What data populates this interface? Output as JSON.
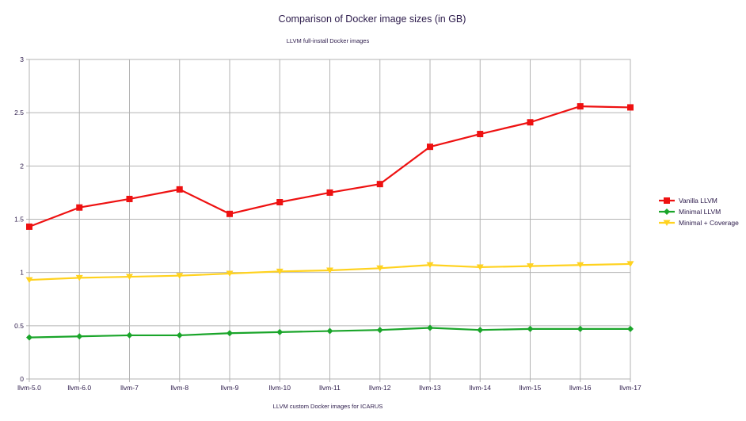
{
  "chart_data": {
    "type": "line",
    "title": "Comparison of Docker image sizes (in GB)",
    "subtitle": "LLVM full-install Docker images",
    "xlabel": "LLVM custom Docker images for ICARUS",
    "ylabel": "",
    "categories": [
      "llvm-5.0",
      "llvm-6.0",
      "llvm-7",
      "llvm-8",
      "llvm-9",
      "llvm-10",
      "llvm-11",
      "llvm-12",
      "llvm-13",
      "llvm-14",
      "llvm-15",
      "llvm-16",
      "llvm-17"
    ],
    "ylim": [
      0,
      3
    ],
    "yticks": [
      "0",
      "0.5",
      "1",
      "1.5",
      "2",
      "2.5",
      "3"
    ],
    "grid": true,
    "legend_position": "right",
    "series": [
      {
        "name": "Vanilla LLVM",
        "color": "#ee1111",
        "marker": "square",
        "values": [
          1.43,
          1.61,
          1.69,
          1.78,
          1.55,
          1.66,
          1.75,
          1.83,
          2.18,
          2.3,
          2.41,
          2.56,
          2.55
        ]
      },
      {
        "name": "Minimal LLVM",
        "color": "#1aa52a",
        "marker": "diamond",
        "values": [
          0.39,
          0.4,
          0.41,
          0.41,
          0.43,
          0.44,
          0.45,
          0.46,
          0.48,
          0.46,
          0.47,
          0.47,
          0.47
        ]
      },
      {
        "name": "Minimal + Coverage",
        "color": "#ffd21f",
        "marker": "triangle-down",
        "values": [
          0.93,
          0.95,
          0.96,
          0.97,
          0.99,
          1.01,
          1.02,
          1.04,
          1.07,
          1.05,
          1.06,
          1.07,
          1.08
        ]
      }
    ]
  }
}
